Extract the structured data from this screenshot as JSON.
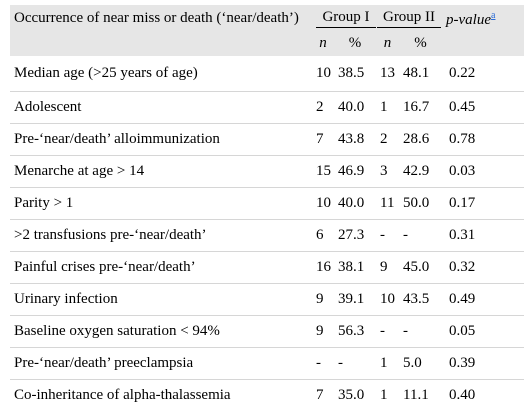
{
  "header": {
    "label": "Occurrence of near miss or death (‘near/death’)",
    "group1": "Group I",
    "group2": "Group II",
    "pvalue": "p-value",
    "pvalue_footnote": "a",
    "n": "n",
    "pct": "%"
  },
  "rows": [
    {
      "label": "Median age (>25 years of age)",
      "n1": "10",
      "p1": "38.5",
      "n2": "13",
      "p2": "48.1",
      "pv": "0.22"
    },
    {
      "label": "Adolescent",
      "n1": "2",
      "p1": "40.0",
      "n2": "1",
      "p2": "16.7",
      "pv": "0.45"
    },
    {
      "label": "Pre-‘near/death’ alloimmunization",
      "n1": "7",
      "p1": "43.8",
      "n2": "2",
      "p2": "28.6",
      "pv": "0.78"
    },
    {
      "label": "Menarche at age > 14",
      "n1": "15",
      "p1": "46.9",
      "n2": "3",
      "p2": "42.9",
      "pv": "0.03"
    },
    {
      "label": "Parity > 1",
      "n1": "10",
      "p1": "40.0",
      "n2": "11",
      "p2": "50.0",
      "pv": "0.17"
    },
    {
      "label": ">2 transfusions pre-‘near/death’",
      "n1": "6",
      "p1": "27.3",
      "n2": "-",
      "p2": "-",
      "pv": "0.31"
    },
    {
      "label": "Painful crises pre-‘near/death’",
      "n1": "16",
      "p1": "38.1",
      "n2": "9",
      "p2": "45.0",
      "pv": "0.32"
    },
    {
      "label": "Urinary infection",
      "n1": "9",
      "p1": "39.1",
      "n2": "10",
      "p2": "43.5",
      "pv": "0.49"
    },
    {
      "label": "Baseline oxygen saturation < 94%",
      "n1": "9",
      "p1": "56.3",
      "n2": "-",
      "p2": "-",
      "pv": "0.05"
    },
    {
      "label": "Pre-‘near/death’ preeclampsia",
      "n1": "-",
      "p1": "-",
      "n2": "1",
      "p2": "5.0",
      "pv": "0.39"
    },
    {
      "label": "Co-inheritance of alpha-thalassemia",
      "n1": "7",
      "p1": "35.0",
      "n2": "1",
      "p2": "11.1",
      "pv": "0.40"
    }
  ]
}
